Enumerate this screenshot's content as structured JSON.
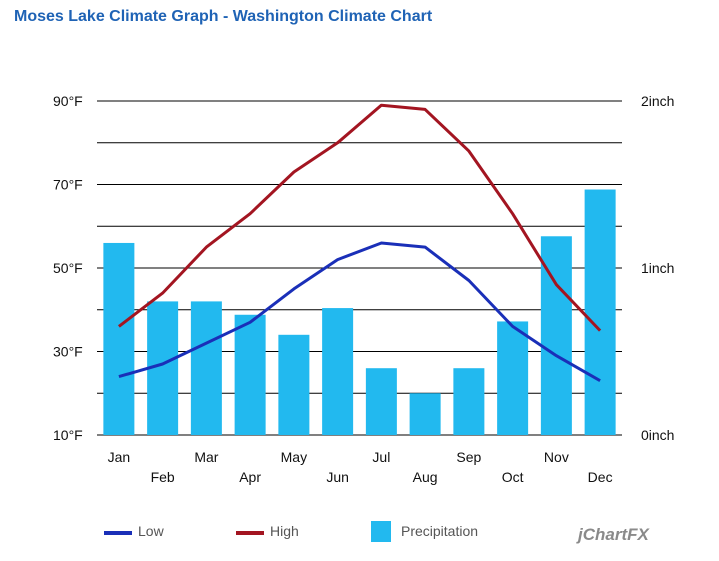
{
  "title": "Moses Lake Climate Graph - Washington Climate Chart",
  "watermark": "jChartFX",
  "colors": {
    "low": "#1a2fb8",
    "high": "#a31521",
    "precipitation": "#22b9ef",
    "title": "#1f63b5",
    "grid": "#000000"
  },
  "chart_data": {
    "type": "bar",
    "categories": [
      "Jan",
      "Feb",
      "Mar",
      "Apr",
      "May",
      "Jun",
      "Jul",
      "Aug",
      "Sep",
      "Oct",
      "Nov",
      "Dec"
    ],
    "series": [
      {
        "name": "Low",
        "type": "line",
        "axis": "left",
        "values": [
          24,
          27,
          32,
          37,
          45,
          52,
          56,
          55,
          47,
          36,
          29,
          23
        ]
      },
      {
        "name": "High",
        "type": "line",
        "axis": "left",
        "values": [
          36,
          44,
          55,
          63,
          73,
          80,
          89,
          88,
          78,
          63,
          46,
          35
        ]
      },
      {
        "name": "Precipitation",
        "type": "bar",
        "axis": "right",
        "values": [
          1.15,
          0.8,
          0.8,
          0.72,
          0.6,
          0.76,
          0.4,
          0.25,
          0.4,
          0.68,
          1.19,
          1.47
        ]
      }
    ],
    "y_left": {
      "min": 10,
      "max": 90,
      "ticks": [
        10,
        30,
        50,
        70,
        90
      ],
      "tick_labels": [
        "10°F",
        "30°F",
        "50°F",
        "70°F",
        "90°F"
      ]
    },
    "y_right": {
      "min": 0,
      "max": 2,
      "ticks": [
        0,
        1,
        2
      ],
      "tick_labels": [
        "0inch",
        "1inch",
        "2inch"
      ]
    },
    "gridlines": [
      10,
      20,
      30,
      40,
      50,
      60,
      70,
      80,
      90
    ],
    "grid": true,
    "legend_position": "bottom"
  }
}
